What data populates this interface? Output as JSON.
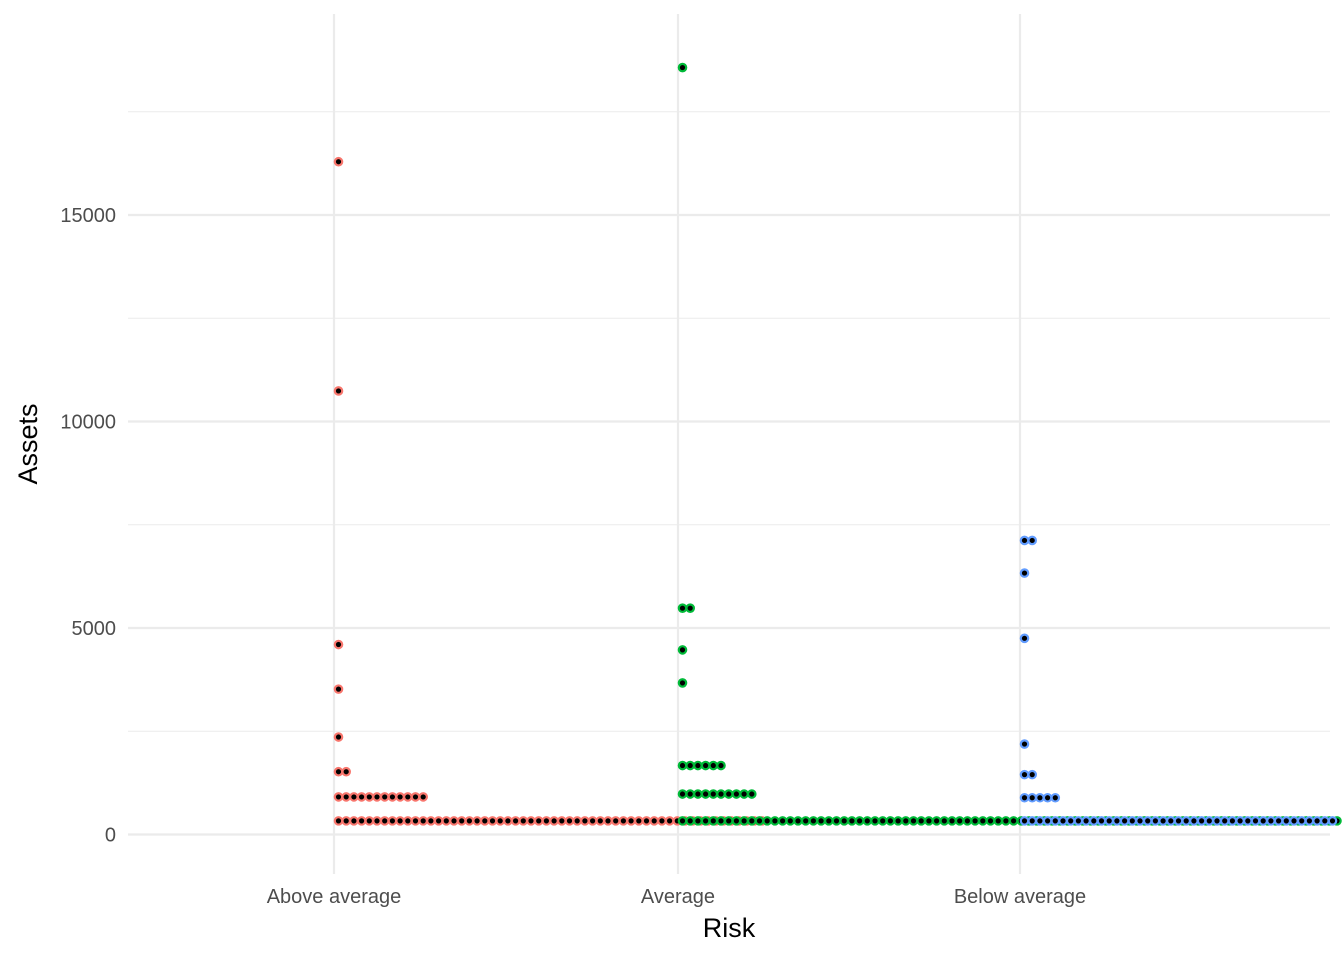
{
  "chart_data": {
    "type": "scatter",
    "subtype": "dotplot",
    "xlabel": "Risk",
    "ylabel": "Assets",
    "categories": [
      "Above average",
      "Average",
      "Below average"
    ],
    "y_ticks": [
      0,
      5000,
      10000,
      15000
    ],
    "y_tick_labels": [
      "0",
      "5000",
      "10000",
      "15000"
    ],
    "ylim": [
      -1000,
      19500
    ],
    "grid": true,
    "legend": "none",
    "dot_fill": "#000000",
    "series": [
      {
        "category": "Above average",
        "color": "#F8766D",
        "bins": [
          {
            "y": 330,
            "count": 56
          },
          {
            "y": 910,
            "count": 12
          },
          {
            "y": 1520,
            "count": 2
          },
          {
            "y": 2360,
            "count": 1
          },
          {
            "y": 3520,
            "count": 1
          },
          {
            "y": 4600,
            "count": 1
          },
          {
            "y": 10740,
            "count": 1
          },
          {
            "y": 16290,
            "count": 1
          }
        ]
      },
      {
        "category": "Average",
        "color": "#00BA38",
        "bins": [
          {
            "y": 330,
            "count": 99
          },
          {
            "y": 980,
            "count": 10
          },
          {
            "y": 1670,
            "count": 6
          },
          {
            "y": 3670,
            "count": 1
          },
          {
            "y": 4470,
            "count": 1
          },
          {
            "y": 5480,
            "count": 2
          },
          {
            "y": 18570,
            "count": 1
          }
        ]
      },
      {
        "category": "Below average",
        "color": "#619CFF",
        "bins": [
          {
            "y": 330,
            "count": 55
          },
          {
            "y": 890,
            "count": 5
          },
          {
            "y": 1450,
            "count": 2
          },
          {
            "y": 2190,
            "count": 1
          },
          {
            "y": 4750,
            "count": 1
          },
          {
            "y": 6330,
            "count": 1
          },
          {
            "y": 7120,
            "count": 2
          }
        ]
      }
    ]
  }
}
